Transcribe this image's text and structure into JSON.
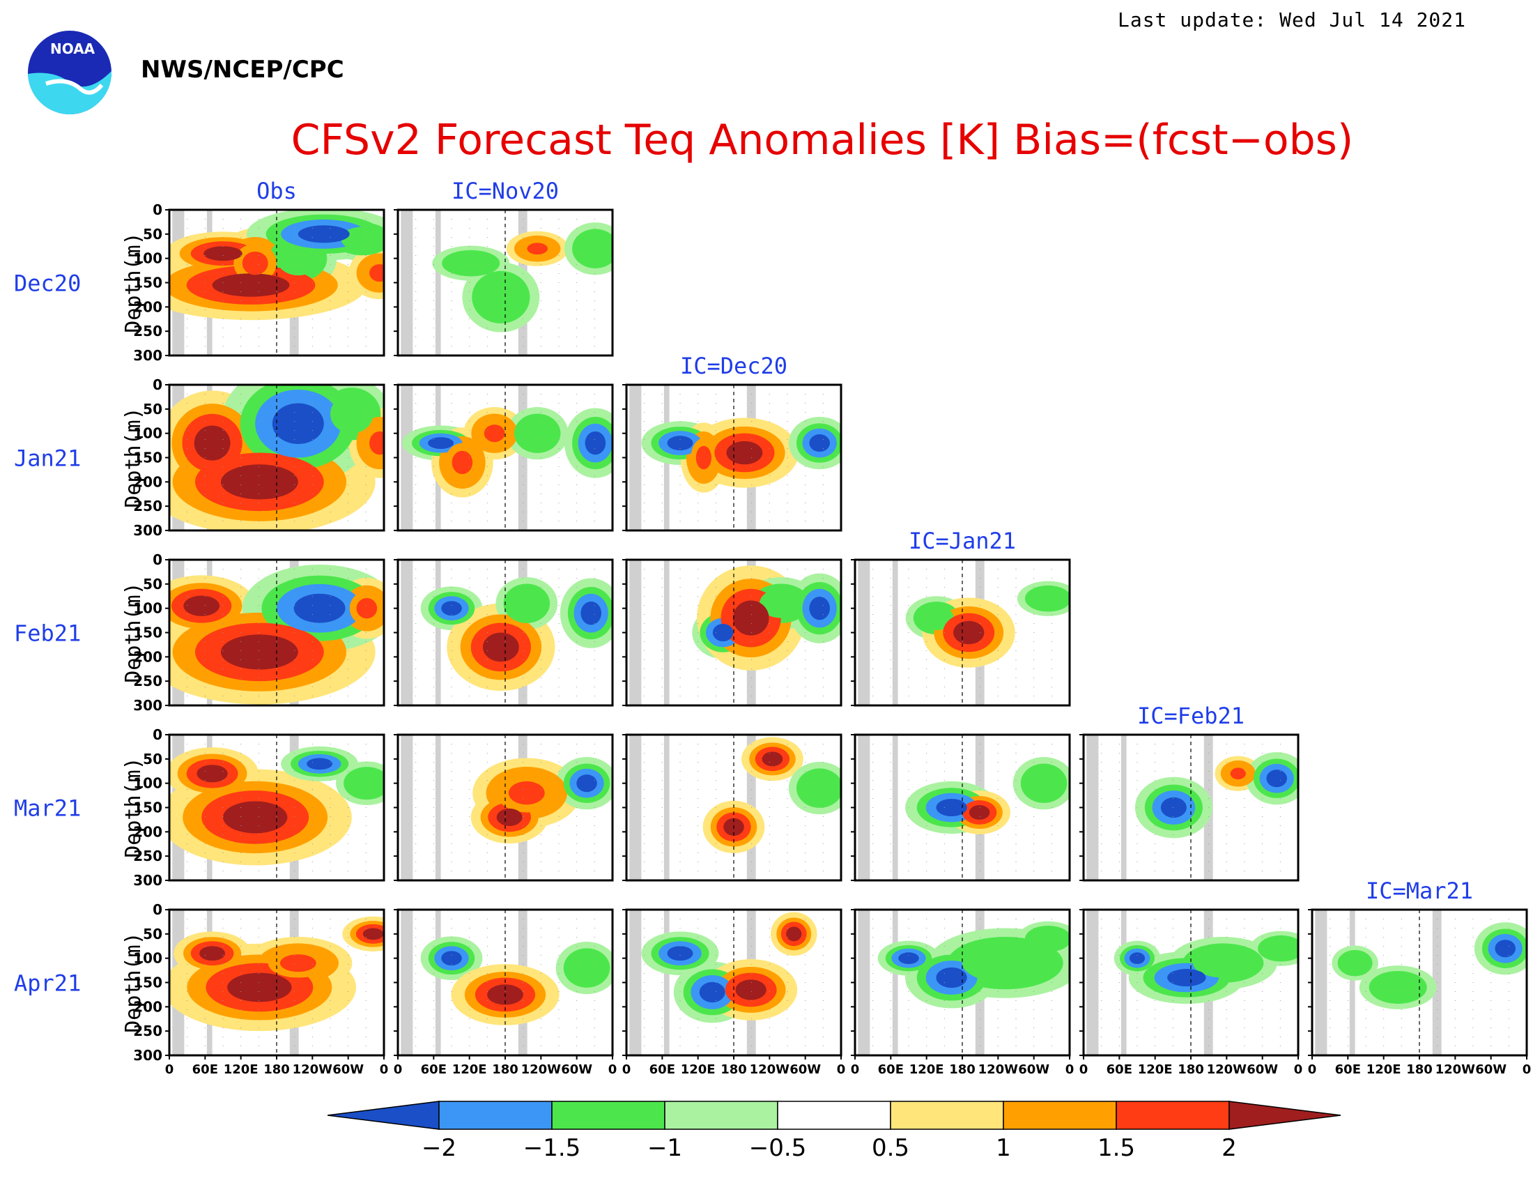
{
  "header": {
    "last_update": "Last update: Wed Jul 14 2021",
    "agency": "NWS/NCEP/CPC",
    "logo_text": "NOAA",
    "title": "CFSv2 Forecast Teq Anomalies [K] Bias=(fcst−obs)"
  },
  "colors": {
    "title": "#e60000",
    "label_blue": "#1f3de8",
    "land_gray": "#d0d0d0"
  },
  "chart_data": {
    "type": "heatmap",
    "columns": [
      "Obs",
      "IC=Nov20",
      "IC=Dec20",
      "IC=Jan21",
      "IC=Feb21",
      "IC=Mar21"
    ],
    "rows": [
      "Dec20",
      "Jan21",
      "Feb21",
      "Mar21",
      "Apr21"
    ],
    "ylabel": "Depth(m)",
    "yticks": [
      "0",
      "50",
      "100",
      "150",
      "200",
      "250",
      "300"
    ],
    "ylim": [
      300,
      0
    ],
    "xticks": [
      "0",
      "60E",
      "120E",
      "180",
      "120W",
      "60W",
      "0"
    ],
    "xlim_deg": [
      0,
      360
    ],
    "land_bands_deg": [
      [
        5,
        25
      ],
      [
        63,
        72
      ],
      [
        202,
        217
      ]
    ],
    "colorbar": {
      "levels": [
        "−2",
        "−1.5",
        "−1",
        "−0.5",
        "0.5",
        "1",
        "1.5",
        "2"
      ],
      "colors": [
        "#1a4fc8",
        "#3c96f5",
        "#4ce64c",
        "#aaf2a0",
        "#ffffff",
        "#ffe57a",
        "#ffa000",
        "#ff3c14",
        "#a01e1e"
      ]
    },
    "anomaly_blobs": [
      [
        [
          [
            25,
            90,
            15,
            25,
            2
          ],
          [
            38,
            155,
            30,
            40,
            2
          ],
          [
            40,
            110,
            10,
            40,
            1
          ],
          [
            60,
            100,
            10,
            35,
            -1
          ],
          [
            72,
            50,
            20,
            30,
            -2
          ],
          [
            90,
            60,
            10,
            25,
            -1
          ],
          [
            98,
            130,
            8,
            30,
            1
          ]
        ],
        [
          [
            34,
            110,
            10,
            20,
            -1
          ],
          [
            48,
            180,
            10,
            40,
            -1
          ],
          [
            65,
            80,
            8,
            20,
            1
          ],
          [
            92,
            80,
            8,
            30,
            -1
          ]
        ],
        null,
        null,
        null,
        null
      ],
      [
        [
          [
            20,
            120,
            14,
            60,
            2
          ],
          [
            42,
            200,
            30,
            60,
            2
          ],
          [
            60,
            80,
            20,
            70,
            -2
          ],
          [
            85,
            60,
            10,
            40,
            -1
          ],
          [
            98,
            120,
            8,
            40,
            1
          ]
        ],
        [
          [
            20,
            120,
            10,
            20,
            -2
          ],
          [
            30,
            160,
            8,
            40,
            1
          ],
          [
            45,
            100,
            8,
            30,
            1
          ],
          [
            65,
            100,
            8,
            30,
            -1
          ],
          [
            92,
            120,
            8,
            40,
            -2
          ]
        ],
        [
          [
            25,
            120,
            10,
            25,
            -2
          ],
          [
            36,
            150,
            6,
            40,
            1
          ],
          [
            55,
            140,
            14,
            40,
            2
          ],
          [
            90,
            120,
            8,
            30,
            -2
          ]
        ],
        null,
        null,
        null
      ],
      [
        [
          [
            15,
            95,
            14,
            35,
            2
          ],
          [
            42,
            190,
            30,
            60,
            2
          ],
          [
            70,
            100,
            20,
            50,
            -2
          ],
          [
            92,
            100,
            8,
            35,
            1
          ]
        ],
        [
          [
            25,
            100,
            8,
            25,
            -2
          ],
          [
            48,
            180,
            14,
            50,
            2
          ],
          [
            60,
            90,
            8,
            30,
            -1
          ],
          [
            90,
            110,
            8,
            40,
            -2
          ]
        ],
        [
          [
            45,
            150,
            8,
            30,
            -2
          ],
          [
            58,
            120,
            14,
            60,
            2
          ],
          [
            72,
            90,
            10,
            30,
            -1
          ],
          [
            90,
            100,
            8,
            40,
            -2
          ]
        ],
        [
          [
            38,
            120,
            8,
            25,
            -1
          ],
          [
            53,
            150,
            12,
            40,
            2
          ],
          [
            90,
            80,
            8,
            20,
            -1
          ]
        ],
        null,
        null
      ],
      [
        [
          [
            20,
            80,
            12,
            30,
            2
          ],
          [
            40,
            170,
            25,
            55,
            2
          ],
          [
            70,
            60,
            10,
            20,
            -2
          ],
          [
            92,
            100,
            8,
            25,
            -1
          ]
        ],
        [
          [
            52,
            170,
            10,
            30,
            2
          ],
          [
            60,
            120,
            14,
            40,
            1
          ],
          [
            88,
            100,
            8,
            30,
            -2
          ]
        ],
        [
          [
            50,
            190,
            8,
            30,
            2
          ],
          [
            68,
            50,
            8,
            25,
            2
          ],
          [
            90,
            110,
            8,
            30,
            -1
          ]
        ],
        [
          [
            45,
            150,
            12,
            30,
            -2
          ],
          [
            58,
            160,
            8,
            25,
            2
          ],
          [
            88,
            100,
            8,
            30,
            -1
          ]
        ],
        [
          [
            42,
            150,
            10,
            35,
            -2
          ],
          [
            72,
            80,
            6,
            20,
            1
          ],
          [
            90,
            90,
            8,
            30,
            -2
          ]
        ],
        null
      ],
      [
        [
          [
            20,
            90,
            10,
            25,
            2
          ],
          [
            42,
            160,
            25,
            50,
            2
          ],
          [
            60,
            110,
            14,
            30,
            1
          ],
          [
            95,
            50,
            8,
            20,
            2
          ]
        ],
        [
          [
            25,
            100,
            8,
            25,
            -2
          ],
          [
            50,
            175,
            14,
            35,
            2
          ],
          [
            88,
            120,
            8,
            30,
            -1
          ]
        ],
        [
          [
            25,
            90,
            10,
            25,
            -2
          ],
          [
            40,
            170,
            10,
            35,
            -2
          ],
          [
            58,
            165,
            12,
            35,
            2
          ],
          [
            78,
            50,
            6,
            25,
            2
          ]
        ],
        [
          [
            25,
            100,
            8,
            20,
            -2
          ],
          [
            45,
            140,
            12,
            35,
            -2
          ],
          [
            70,
            110,
            20,
            40,
            -1
          ],
          [
            90,
            60,
            8,
            20,
            -1
          ]
        ],
        [
          [
            25,
            100,
            6,
            20,
            -2
          ],
          [
            48,
            140,
            15,
            30,
            -2
          ],
          [
            65,
            110,
            14,
            30,
            -1
          ],
          [
            92,
            80,
            8,
            20,
            -1
          ]
        ],
        [
          [
            40,
            160,
            10,
            25,
            -1
          ],
          [
            20,
            110,
            6,
            20,
            -1
          ],
          [
            90,
            80,
            8,
            30,
            -2
          ]
        ]
      ]
    ]
  }
}
